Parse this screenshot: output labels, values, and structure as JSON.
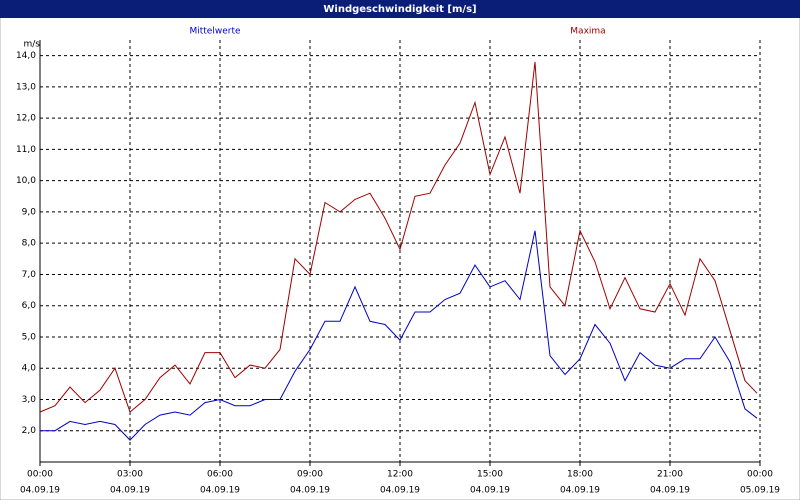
{
  "chart_data": {
    "type": "line",
    "title": "Windgeschwindigkeit [m/s]",
    "y_unit": "m/s",
    "x": [
      0,
      0.5,
      1,
      1.5,
      2,
      2.5,
      3,
      3.5,
      4,
      4.5,
      5,
      5.5,
      6,
      6.5,
      7,
      7.5,
      8,
      8.5,
      9,
      9.5,
      10,
      10.5,
      11,
      11.5,
      12,
      12.5,
      13,
      13.5,
      14,
      14.5,
      15,
      15.5,
      16,
      16.5,
      17,
      17.5,
      18,
      18.5,
      19,
      19.5,
      20,
      20.5,
      21,
      21.5,
      22,
      22.5,
      23,
      23.5,
      23.9
    ],
    "series": [
      {
        "name": "Mittelwerte",
        "color": "#0000c8",
        "values": [
          2.0,
          2.0,
          2.3,
          2.2,
          2.3,
          2.2,
          1.7,
          2.2,
          2.5,
          2.6,
          2.5,
          2.9,
          3.0,
          2.8,
          2.8,
          3.0,
          3.0,
          3.9,
          4.6,
          5.5,
          5.5,
          6.6,
          5.5,
          5.4,
          4.9,
          5.8,
          5.8,
          6.2,
          6.4,
          7.3,
          6.6,
          6.8,
          6.2,
          8.4,
          4.4,
          3.8,
          4.3,
          5.4,
          4.8,
          3.6,
          4.5,
          4.1,
          4.0,
          4.3,
          4.3,
          5.0,
          4.2,
          2.7,
          2.4
        ]
      },
      {
        "name": "Maxima",
        "color": "#a00000",
        "values": [
          2.6,
          2.8,
          3.4,
          2.9,
          3.3,
          4.0,
          2.6,
          3.0,
          3.7,
          4.1,
          3.5,
          4.5,
          4.5,
          3.7,
          4.1,
          4.0,
          4.6,
          7.5,
          7.0,
          9.3,
          9.0,
          9.4,
          9.6,
          8.8,
          7.8,
          9.5,
          9.6,
          10.5,
          11.2,
          12.5,
          10.2,
          11.4,
          9.6,
          13.8,
          6.6,
          6.0,
          8.4,
          7.4,
          5.9,
          6.9,
          5.9,
          5.8,
          6.7,
          5.7,
          7.5,
          6.8,
          5.2,
          3.6,
          3.2
        ]
      }
    ],
    "xlim": [
      0,
      24
    ],
    "xticks": [
      {
        "value": 0,
        "label": "00:00"
      },
      {
        "value": 3,
        "label": "03:00"
      },
      {
        "value": 6,
        "label": "06:00"
      },
      {
        "value": 9,
        "label": "09:00"
      },
      {
        "value": 12,
        "label": "12:00"
      },
      {
        "value": 15,
        "label": "15:00"
      },
      {
        "value": 18,
        "label": "18:00"
      },
      {
        "value": 21,
        "label": "21:00"
      },
      {
        "value": 24,
        "label": "00:00"
      }
    ],
    "xtick_dates": [
      "04.09.19",
      "04.09.19",
      "04.09.19",
      "04.09.19",
      "04.09.19",
      "04.09.19",
      "04.09.19",
      "04.09.19",
      "05.09.19"
    ],
    "ylim": [
      1.0,
      14.5
    ],
    "yticks": [
      {
        "value": 2,
        "label": "2,0"
      },
      {
        "value": 3,
        "label": "3,0"
      },
      {
        "value": 4,
        "label": "4,0"
      },
      {
        "value": 5,
        "label": "5,0"
      },
      {
        "value": 6,
        "label": "6,0"
      },
      {
        "value": 7,
        "label": "7,0"
      },
      {
        "value": 8,
        "label": "8,0"
      },
      {
        "value": 9,
        "label": "9,0"
      },
      {
        "value": 10,
        "label": "10,0"
      },
      {
        "value": 11,
        "label": "11,0"
      },
      {
        "value": 12,
        "label": "12,0"
      },
      {
        "value": 13,
        "label": "13,0"
      },
      {
        "value": 14,
        "label": "14,0"
      }
    ],
    "grid": true
  }
}
